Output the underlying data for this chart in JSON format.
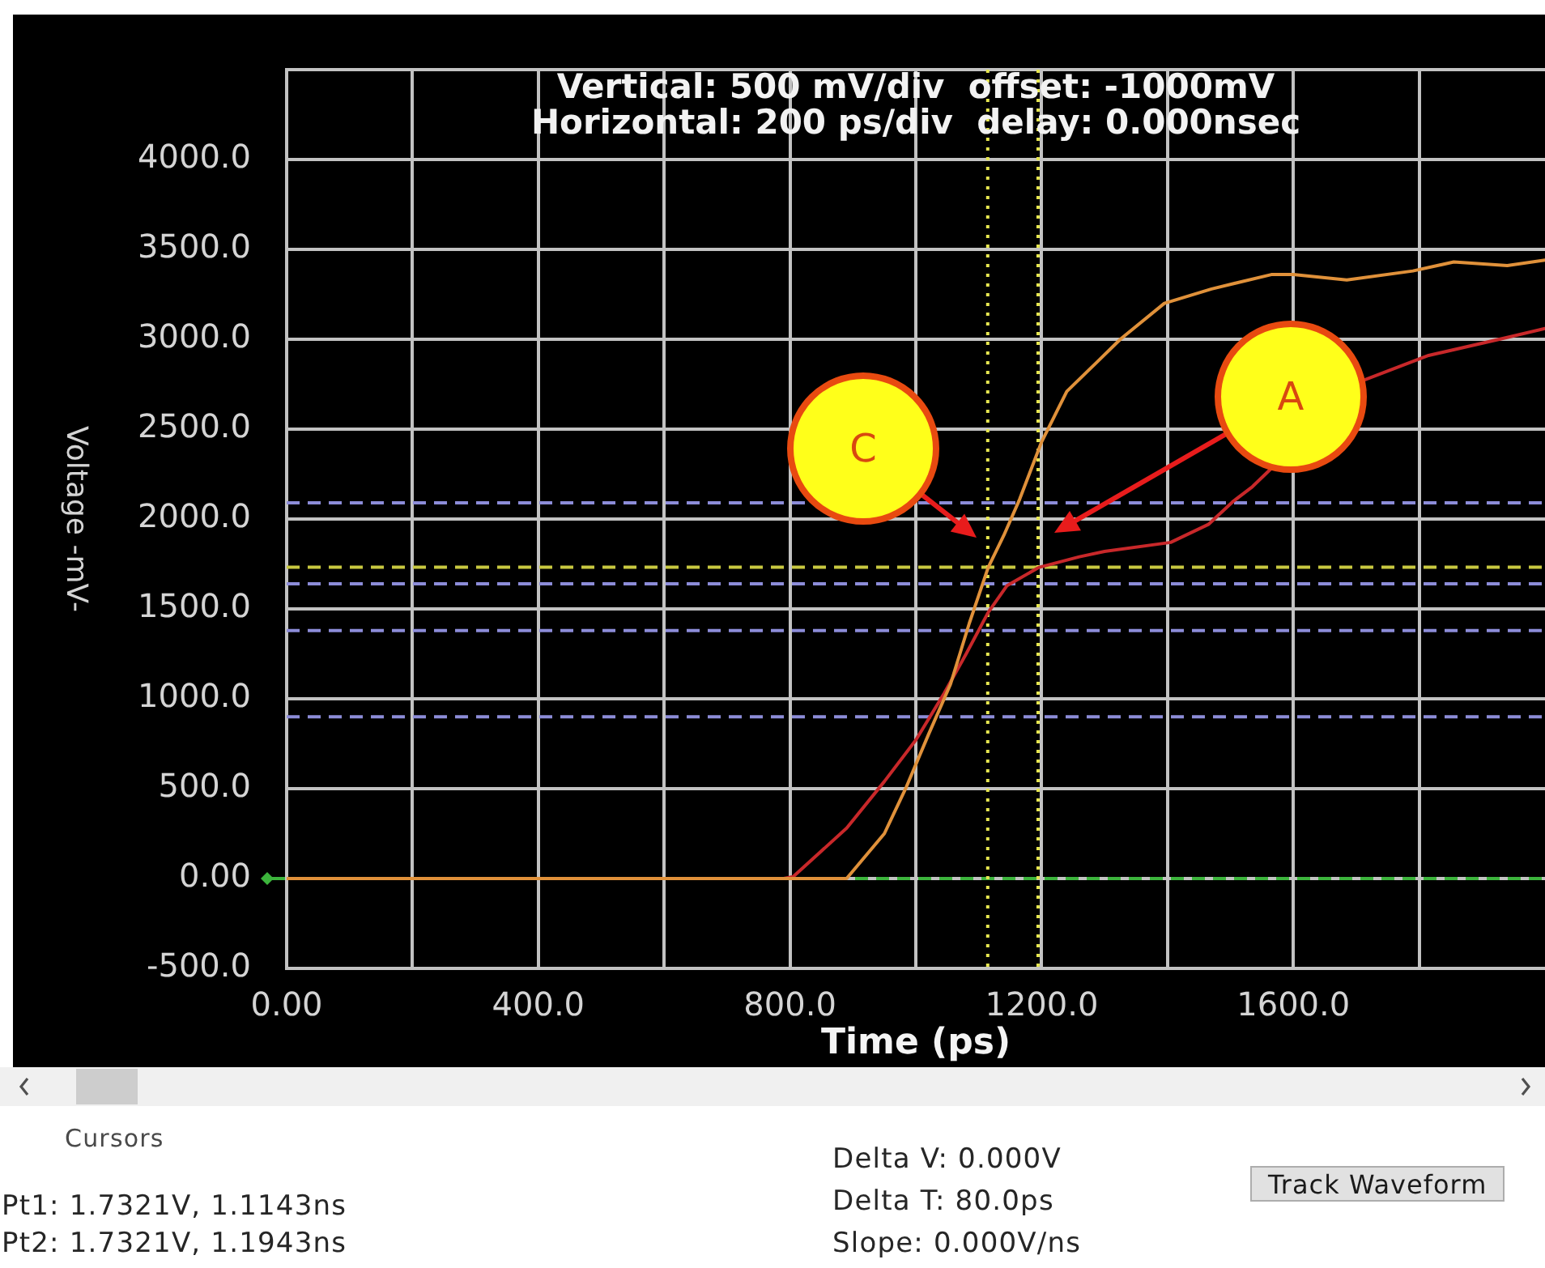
{
  "chart_data": {
    "type": "line",
    "title": "Vertical: 500 mV/div  offset: -1000mV",
    "subtitle": "Horizontal: 200 ps/div  delay: 0.000nsec",
    "xlabel": "Time (ps)",
    "ylabel": "Voltage -mV-",
    "xlim": [
      0,
      2000
    ],
    "xticks": [
      {
        "value": 0,
        "label": "0.00"
      },
      {
        "value": 200,
        "label": null
      },
      {
        "value": 400,
        "label": "400.0"
      },
      {
        "value": 600,
        "label": null
      },
      {
        "value": 800,
        "label": "800.0"
      },
      {
        "value": 1000,
        "label": null
      },
      {
        "value": 1200,
        "label": "1200.0"
      },
      {
        "value": 1400,
        "label": null
      },
      {
        "value": 1600,
        "label": "1600.0"
      },
      {
        "value": 1800,
        "label": null
      }
    ],
    "ylim": [
      -500,
      4500
    ],
    "yticks": [
      {
        "value": -500,
        "label": "-500.0"
      },
      {
        "value": 0,
        "label": "0.00"
      },
      {
        "value": 500,
        "label": "500.0"
      },
      {
        "value": 1000,
        "label": "1000.0"
      },
      {
        "value": 1500,
        "label": "1500.0"
      },
      {
        "value": 2000,
        "label": "2000.0"
      },
      {
        "value": 2500,
        "label": "2500.0"
      },
      {
        "value": 3000,
        "label": "3000.0"
      },
      {
        "value": 3500,
        "label": "3500.0"
      },
      {
        "value": 4000,
        "label": "4000.0"
      },
      {
        "value": 4500,
        "label": null
      }
    ],
    "grid": true,
    "series": [
      {
        "color": "#e0913a",
        "x": [
          0,
          890,
          950,
          985,
          1020,
          1055,
          1085,
          1115,
          1140,
          1165,
          1200,
          1240,
          1290,
          1325,
          1395,
          1470,
          1565,
          1600,
          1685,
          1790,
          1855,
          1940,
          2000
        ],
        "values": [
          0,
          0,
          250,
          510,
          800,
          1080,
          1420,
          1730,
          1910,
          2110,
          2430,
          2710,
          2880,
          3000,
          3200,
          3280,
          3360,
          3360,
          3330,
          3380,
          3430,
          3410,
          3440
        ]
      },
      {
        "color": "#c8282a",
        "x": [
          790,
          805,
          890,
          950,
          1000,
          1045,
          1080,
          1115,
          1145,
          1195,
          1260,
          1300,
          1405,
          1465,
          1505,
          1535,
          1710,
          1815,
          1940,
          2000
        ],
        "values": [
          0,
          10,
          280,
          540,
          770,
          1030,
          1250,
          1480,
          1630,
          1730,
          1790,
          1820,
          1870,
          1970,
          2100,
          2180,
          2770,
          2910,
          3010,
          3060
        ]
      }
    ],
    "ref_lines": [
      {
        "axis": "y",
        "value": 0,
        "color": "#3cb43c",
        "line_style": "dashed"
      },
      {
        "axis": "y",
        "value": 2090,
        "color": "#8c8cd8",
        "line_style": "dashed"
      },
      {
        "axis": "y",
        "value": 1640,
        "color": "#8c8cd8",
        "line_style": "dashed"
      },
      {
        "axis": "y",
        "value": 1380,
        "color": "#8c8cd8",
        "line_style": "dashed"
      },
      {
        "axis": "y",
        "value": 900,
        "color": "#8c8cd8",
        "line_style": "dashed"
      },
      {
        "axis": "y",
        "value": 1732.1,
        "color": "#c8c840",
        "line_style": "dashed"
      },
      {
        "axis": "x",
        "value": 1114.3,
        "color": "#e6e650",
        "line_style": "dotted"
      },
      {
        "axis": "x",
        "value": 1194.3,
        "color": "#e6e650",
        "line_style": "dotted"
      }
    ],
    "annotations": [
      "C",
      "A",
      "Cursors",
      "Pt1: 1.7321V, 1.1143ns",
      "Pt2: 1.7321V, 1.1943ns",
      "Delta V: 0.000V",
      "Delta T: 80.0ps",
      "Slope: 0.000V/ns",
      "Track Waveform"
    ]
  }
}
